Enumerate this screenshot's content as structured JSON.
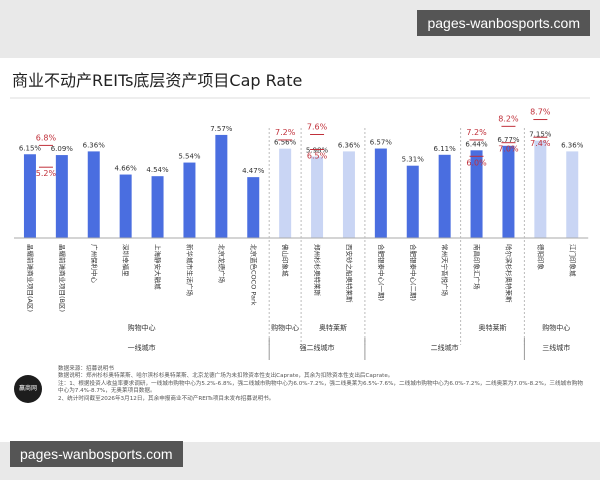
{
  "chart_data": {
    "type": "bar",
    "title": "商业不动产REITs底层资产项目Cap Rate",
    "categories": [
      "晶耀前滩商业项目(A区)",
      "晶耀前滩商业项目(B区)",
      "广州保利中心",
      "深圳幸福里",
      "上海静安大融城",
      "新华城市生活广场",
      "北京龙德广场",
      "北京蓝色COCO Park",
      "佛山印象城",
      "郑州杉杉奥特莱斯",
      "西安砂之船奥特莱斯",
      "合肥银泰中心(一期)",
      "合肥银泰中心(二期)",
      "常州天宁吾悦广场",
      "南昌印象汇广场",
      "哈尔滨杉杉奥特莱斯",
      "德阳印象",
      "江门印象城"
    ],
    "values": [
      6.15,
      6.09,
      6.36,
      4.66,
      4.54,
      5.54,
      7.57,
      4.47,
      6.56,
      5.98,
      6.36,
      6.57,
      5.31,
      6.11,
      6.44,
      6.77,
      7.15,
      6.36
    ],
    "value_labels": [
      "6.15%",
      "6.09%",
      "6.36%",
      "4.66%",
      "4.54%",
      "5.54%",
      "7.57%",
      "4.47%",
      "6.56%",
      "5.98%",
      "6.36%",
      "6.57%",
      "5.31%",
      "6.11%",
      "6.44%",
      "6.77%",
      "7.15%",
      "6.36%"
    ],
    "colors": [
      "#4a6ee0",
      "#4a6ee0",
      "#4a6ee0",
      "#4a6ee0",
      "#4a6ee0",
      "#4a6ee0",
      "#4a6ee0",
      "#4a6ee0",
      "#c9d5f4",
      "#c9d5f4",
      "#c9d5f4",
      "#4a6ee0",
      "#4a6ee0",
      "#4a6ee0",
      "#4a6ee0",
      "#4a6ee0",
      "#c9d5f4",
      "#c9d5f4"
    ],
    "benchmark_high": [
      6.8,
      null,
      null,
      null,
      null,
      null,
      null,
      null,
      7.2,
      7.6,
      null,
      null,
      null,
      null,
      7.2,
      8.2,
      8.7,
      null
    ],
    "benchmark_high_labels": [
      "6.8%",
      null,
      null,
      null,
      null,
      null,
      null,
      null,
      "7.2%",
      "7.6%",
      null,
      null,
      null,
      null,
      "7.2%",
      "8.2%",
      "8.7%",
      null
    ],
    "benchmark_low": [
      5.2,
      null,
      null,
      null,
      null,
      null,
      null,
      null,
      null,
      6.5,
      null,
      null,
      null,
      null,
      6.0,
      7.0,
      7.4,
      null
    ],
    "benchmark_low_labels": [
      "5.2%",
      null,
      null,
      null,
      null,
      null,
      null,
      null,
      null,
      "6.5%",
      null,
      null,
      null,
      null,
      "6.0%",
      "7.0%",
      "7.4%",
      null
    ],
    "benchmark_color": "#c0303a",
    "ylim": [
      0,
      9.4
    ],
    "groups": [
      {
        "label": "购物中心",
        "tier": "一线城市",
        "count": 8
      },
      {
        "label": "购物中心",
        "tier": "强二线城市",
        "count": 1
      },
      {
        "label": "奥特莱斯",
        "tier": null,
        "count": 2
      },
      {
        "label": null,
        "tier": "二线城市",
        "count": 3
      },
      {
        "label": "奥特莱斯",
        "tier": null,
        "count": 2
      },
      {
        "label": "购物中心",
        "tier": "三线城市",
        "count": 2
      }
    ],
    "notes": [
      "数据来源：招募说明书",
      "数据说明：郑州杉杉奥特莱斯、哈尔滨杉杉奥特莱斯、北京龙德广场为未扣除资本性支出Caprate，其余为扣除资本性支出后Caprate。",
      "注：1、根据投资人收益率要求调研，一线城市购物中心为5.2%-6.8%，强二线城市购物中心为6.0%-7.2%，强二线奥莱为6.5%-7.6%，二线城市购物中心为6.0%-7.2%，二线奥莱为7.0%-8.2%，三线城市购物中心为7.4%-8.7%，无奥莱项目数据。",
      "2、统计时间截至2026年3月12日，其余申报商业不动产REITs项目未发布招募说明书。"
    ]
  },
  "logo": "赢商网",
  "watermarks": [
    "pages-wanbosports.com",
    "pages-wanbosports.com"
  ]
}
